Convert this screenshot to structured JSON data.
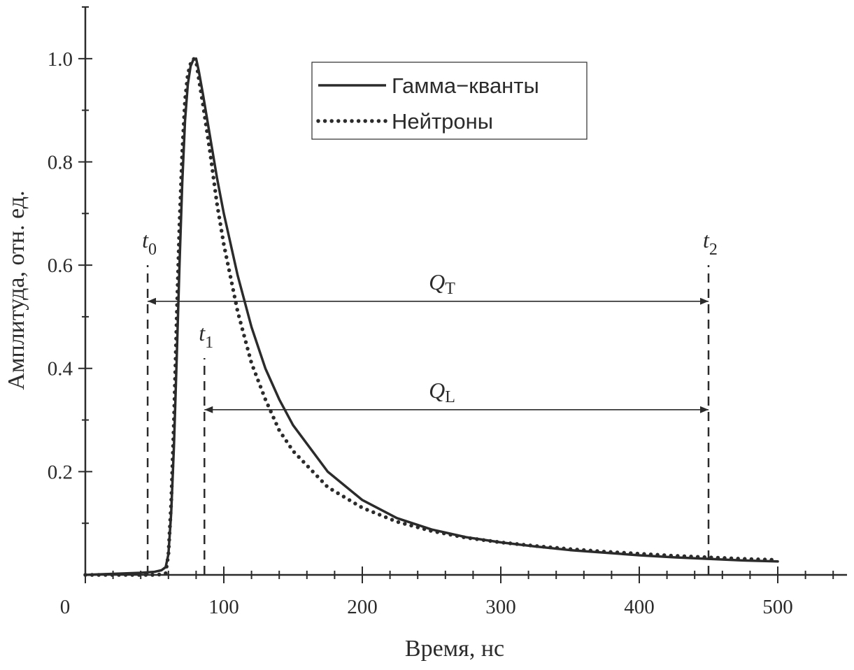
{
  "chart_data": {
    "type": "line",
    "title": "",
    "xlabel": "Время, нс",
    "ylabel": "Амплитуда, отн. ед.",
    "xlim": [
      0,
      550
    ],
    "ylim": [
      0,
      1.1
    ],
    "x_ticks": [
      0,
      100,
      200,
      300,
      400,
      500
    ],
    "x_tick_labels": [
      "0",
      "100",
      "200",
      "300",
      "400",
      "500"
    ],
    "y_ticks": [
      0.2,
      0.4,
      0.6,
      0.8,
      1.0
    ],
    "y_tick_labels": [
      "0.2",
      "0.4",
      "0.6",
      "0.8",
      "1.0"
    ],
    "grid": false,
    "legend_position": "top-center",
    "series": [
      {
        "name": "Гамма−кванты",
        "style": "solid",
        "color": "#2b2b2b",
        "x": [
          0,
          20,
          40,
          50,
          55,
          58,
          60,
          62,
          64,
          66,
          68,
          70,
          72,
          74,
          76,
          78,
          80,
          82,
          85,
          90,
          95,
          100,
          110,
          120,
          130,
          140,
          150,
          175,
          200,
          225,
          250,
          275,
          300,
          325,
          350,
          375,
          400,
          425,
          450,
          475,
          500
        ],
        "y": [
          0.0,
          0.002,
          0.004,
          0.006,
          0.009,
          0.015,
          0.04,
          0.12,
          0.25,
          0.42,
          0.6,
          0.76,
          0.88,
          0.95,
          0.985,
          0.998,
          1.0,
          0.975,
          0.93,
          0.85,
          0.77,
          0.7,
          0.58,
          0.48,
          0.4,
          0.34,
          0.29,
          0.2,
          0.145,
          0.11,
          0.088,
          0.073,
          0.063,
          0.055,
          0.048,
          0.043,
          0.038,
          0.034,
          0.031,
          0.028,
          0.026
        ]
      },
      {
        "name": "Нейтроны",
        "style": "dotted",
        "color": "#2b2b2b",
        "x": [
          0,
          20,
          40,
          50,
          55,
          58,
          60,
          62,
          64,
          66,
          68,
          70,
          72,
          74,
          76,
          78,
          80,
          82,
          85,
          90,
          95,
          100,
          110,
          120,
          130,
          140,
          150,
          175,
          200,
          225,
          250,
          275,
          300,
          325,
          350,
          375,
          400,
          425,
          450,
          475,
          500
        ],
        "y": [
          0.0,
          0.0,
          0.0,
          0.0,
          0.001,
          0.003,
          0.04,
          0.14,
          0.3,
          0.5,
          0.68,
          0.82,
          0.92,
          0.97,
          0.99,
          1.0,
          0.995,
          0.96,
          0.91,
          0.82,
          0.72,
          0.64,
          0.51,
          0.41,
          0.34,
          0.28,
          0.24,
          0.17,
          0.13,
          0.103,
          0.085,
          0.072,
          0.063,
          0.056,
          0.05,
          0.045,
          0.041,
          0.037,
          0.034,
          0.031,
          0.029
        ]
      }
    ],
    "annotations": {
      "vlines": [
        {
          "name": "t0",
          "label": "t",
          "sub": "0",
          "x": 45,
          "y_top": 0.6
        },
        {
          "name": "t1",
          "label": "t",
          "sub": "1",
          "x": 86,
          "y_top": 0.42
        },
        {
          "name": "t2",
          "label": "t",
          "sub": "2",
          "x": 450,
          "y_top": 0.6
        }
      ],
      "ranges": [
        {
          "name": "QT",
          "label": "Q",
          "sub": "T",
          "x_start": 45,
          "x_end": 450,
          "y": 0.53
        },
        {
          "name": "QL",
          "label": "Q",
          "sub": "L",
          "x_start": 86,
          "x_end": 450,
          "y": 0.32
        }
      ]
    }
  }
}
